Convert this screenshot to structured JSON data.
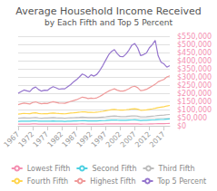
{
  "chart_data": {
    "type": "line",
    "title": "Average Household Income Received",
    "subtitle": "by Each Fifth and Top 5 Percent",
    "x": [
      1967,
      1968,
      1969,
      1970,
      1971,
      1972,
      1973,
      1974,
      1975,
      1976,
      1977,
      1978,
      1979,
      1980,
      1981,
      1982,
      1983,
      1984,
      1985,
      1986,
      1987,
      1988,
      1989,
      1990,
      1991,
      1992,
      1993,
      1994,
      1995,
      1996,
      1997,
      1998,
      1999,
      2000,
      2001,
      2002,
      2003,
      2004,
      2005,
      2006,
      2007,
      2008,
      2009,
      2010,
      2011,
      2012,
      2013,
      2014,
      2015,
      2016,
      2017,
      2018,
      2019
    ],
    "series": [
      {
        "name": "Lowest Fifth",
        "color": "#f48fb1",
        "values": [
          10400,
          10800,
          11200,
          10900,
          10700,
          11300,
          11500,
          10900,
          10400,
          10600,
          10500,
          10900,
          11100,
          10700,
          10400,
          10100,
          9900,
          10200,
          10500,
          10600,
          10700,
          11000,
          11400,
          11000,
          10600,
          10400,
          10200,
          10400,
          10700,
          10900,
          11400,
          11700,
          12100,
          12400,
          11900,
          11500,
          11400,
          11600,
          11800,
          12100,
          12400,
          11900,
          10900,
          11000,
          11200,
          11600,
          12000,
          12400,
          13000,
          13200,
          13500,
          14000,
          14500
        ]
      },
      {
        "name": "Second Fifth",
        "color": "#4dd0e1",
        "values": [
          27000,
          28000,
          29000,
          28500,
          28000,
          30000,
          30500,
          29000,
          28000,
          28500,
          28200,
          29000,
          30000,
          29000,
          28500,
          28000,
          27500,
          28500,
          29000,
          29500,
          30000,
          30500,
          31500,
          31000,
          30000,
          30000,
          29500,
          30000,
          31000,
          32000,
          33000,
          34500,
          35500,
          36000,
          35000,
          34500,
          34000,
          34500,
          35500,
          36000,
          36500,
          35500,
          33000,
          33500,
          34000,
          35000,
          36000,
          37000,
          38500,
          39000,
          39500,
          41000,
          42000
        ]
      },
      {
        "name": "Third Fifth",
        "color": "#bdbdbd",
        "values": [
          46000,
          47500,
          49000,
          48000,
          47500,
          50000,
          51000,
          48500,
          47000,
          48000,
          47500,
          49000,
          50500,
          49000,
          48000,
          47500,
          47000,
          48500,
          49500,
          50000,
          51000,
          52000,
          53500,
          52500,
          51000,
          51000,
          50500,
          51000,
          52500,
          54000,
          55500,
          57500,
          59000,
          60000,
          58500,
          57500,
          57000,
          58000,
          59500,
          60500,
          61000,
          59500,
          55500,
          55500,
          56500,
          58000,
          59500,
          61000,
          63500,
          64500,
          65500,
          68000,
          69500
        ]
      },
      {
        "name": "Fourth Fifth",
        "color": "#ffd54f",
        "values": [
          72000,
          74000,
          76500,
          75000,
          74000,
          78000,
          79500,
          76000,
          73500,
          75000,
          74500,
          77000,
          79000,
          77000,
          75500,
          74500,
          73500,
          76000,
          78000,
          79500,
          81500,
          83500,
          86000,
          85000,
          82500,
          83000,
          82000,
          83500,
          86000,
          89000,
          92500,
          96000,
          99000,
          101000,
          98500,
          97000,
          96500,
          98500,
          101000,
          104000,
          105000,
          102000,
          95500,
          96500,
          98000,
          101000,
          104000,
          107500,
          112000,
          115000,
          117500,
          122000,
          125000
        ]
      },
      {
        "name": "Highest Fifth",
        "color": "#ef9a9a",
        "values": [
          130000,
          135000,
          140000,
          137000,
          134000,
          143000,
          147000,
          140000,
          135000,
          138000,
          137000,
          143000,
          148000,
          144000,
          140000,
          139000,
          138000,
          144000,
          150000,
          155000,
          160000,
          168000,
          176000,
          173000,
          167000,
          170000,
          168000,
          172000,
          181000,
          191000,
          203000,
          213000,
          221000,
          227000,
          219000,
          213000,
          213000,
          219000,
          228000,
          239000,
          243000,
          234000,
          216000,
          219000,
          224000,
          234000,
          244000,
          255000,
          270000,
          278000,
          285000,
          300000,
          307000
        ]
      },
      {
        "name": "Top 5 Percent",
        "color": "#9575cd",
        "values": [
          200000,
          210000,
          220000,
          215000,
          210000,
          230000,
          238000,
          223000,
          213000,
          219000,
          217000,
          230000,
          240000,
          233000,
          225000,
          227000,
          227000,
          240000,
          253000,
          270000,
          283000,
          300000,
          318000,
          310000,
          295000,
          313000,
          305000,
          316000,
          340000,
          369000,
          402000,
          435000,
          456000,
          468000,
          442000,
          425000,
          424000,
          441000,
          465000,
          495000,
          505000,
          478000,
          431000,
          437000,
          447000,
          479000,
          498000,
          525000,
          430000,
          390000,
          380000,
          360000,
          370000
        ]
      }
    ],
    "xlim": [
      1967,
      2019
    ],
    "xticks": [
      1967,
      1972,
      1977,
      1982,
      1987,
      1992,
      1997,
      2002,
      2007,
      2012,
      2017
    ],
    "ylim": [
      0,
      550000
    ],
    "yticks": [
      {
        "value": 0,
        "label": "$0"
      },
      {
        "value": 50000,
        "label": "$50,000"
      },
      {
        "value": 100000,
        "label": "$100,000"
      },
      {
        "value": 150000,
        "label": "$150,000"
      },
      {
        "value": 200000,
        "label": "$200,000"
      },
      {
        "value": 250000,
        "label": "$250,000"
      },
      {
        "value": 300000,
        "label": "$300,000"
      },
      {
        "value": 350000,
        "label": "$350,000"
      },
      {
        "value": 400000,
        "label": "$400,000"
      },
      {
        "value": 450000,
        "label": "$450,000"
      },
      {
        "value": 500000,
        "label": "$500,000"
      },
      {
        "value": 550000,
        "label": "$550,000"
      }
    ],
    "grid": true,
    "legend": "bottom"
  }
}
